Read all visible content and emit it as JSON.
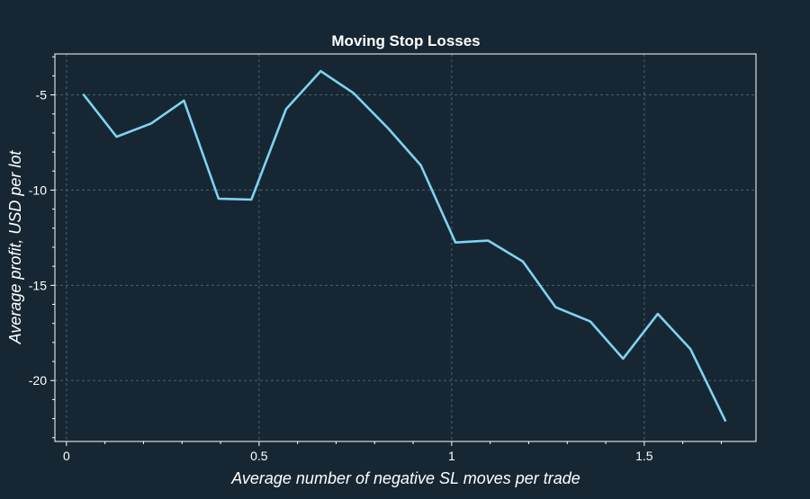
{
  "chart_data": {
    "type": "line",
    "title": "Moving Stop Losses",
    "xlabel": "Average number of negative SL moves per trade",
    "ylabel": "Average profit, USD per lot",
    "xlim": [
      -0.03,
      1.79
    ],
    "ylim": [
      -23.2,
      -2.85
    ],
    "x_ticks": [
      0,
      0.5,
      1,
      1.5
    ],
    "x_tick_labels": [
      "0",
      "0.5",
      "1",
      "1.5"
    ],
    "y_ticks": [
      -5,
      -10,
      -15,
      -20
    ],
    "y_tick_labels": [
      "-5",
      "-10",
      "-15",
      "-20"
    ],
    "grid": true,
    "colors": {
      "background": "#162733",
      "frame": "#ffffff",
      "grid": "#4c5f6b",
      "line": "#7fd3ef",
      "text": "#ffffff"
    },
    "series": [
      {
        "x": [
          0.045,
          0.13,
          0.22,
          0.305,
          0.395,
          0.48,
          0.57,
          0.66,
          0.745,
          0.835,
          0.92,
          1.01,
          1.095,
          1.185,
          1.27,
          1.36,
          1.445,
          1.535,
          1.62,
          1.71
        ],
        "values": [
          -5.0,
          -7.2,
          -6.5,
          -5.3,
          -10.45,
          -10.5,
          -5.75,
          -3.75,
          -4.9,
          -6.75,
          -8.7,
          -12.75,
          -12.65,
          -13.75,
          -16.15,
          -16.9,
          -18.85,
          -16.5,
          -18.35,
          -22.1
        ]
      }
    ]
  }
}
